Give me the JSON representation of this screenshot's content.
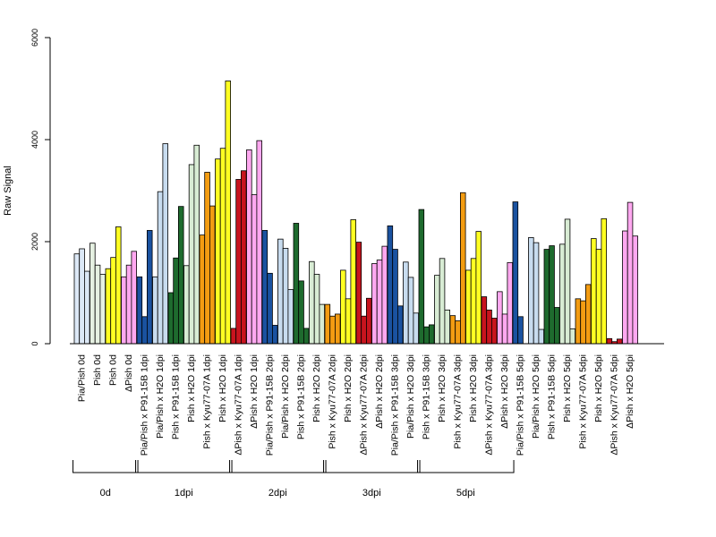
{
  "chart_data": {
    "type": "bar",
    "ylabel": "Raw Signal",
    "ylim": [
      0,
      6000
    ],
    "yticks": [
      0,
      2000,
      4000,
      6000
    ],
    "ytick_labels": [
      "0",
      "2000",
      "4000",
      "6000"
    ],
    "groups": [
      {
        "label": "0d",
        "start": 0,
        "end": 3
      },
      {
        "label": "1dpi",
        "start": 4,
        "end": 9
      },
      {
        "label": "2dpi",
        "start": 10,
        "end": 15
      },
      {
        "label": "3dpi",
        "start": 16,
        "end": 21
      },
      {
        "label": "5dpi",
        "start": 22,
        "end": 27
      }
    ],
    "colors": {
      "pia_pish": "#dce8f6",
      "p91_15b": "#1a52a0",
      "pia_h2o": "#c8dcef",
      "pish_p91": "#1e6b2e",
      "pish_h2o": "#d8ecd4",
      "kyu": "#f39c12",
      "pish_0d": "#e6f1e2",
      "yellow": "#ffff22",
      "red": "#c8141e",
      "pink": "#ffa8f0"
    },
    "categories": [
      {
        "label": "Pia/Pish 0d",
        "values": [
          1760,
          1860,
          1420
        ],
        "colors": [
          "pia_pish",
          "pia_pish",
          "pia_pish"
        ]
      },
      {
        "label": "Pish 0d",
        "values": [
          1970,
          1540,
          1360
        ],
        "colors": [
          "pish_0d",
          "pish_0d",
          "pish_0d"
        ]
      },
      {
        "label": "Pish 0d",
        "values": [
          1470,
          1690,
          2290
        ],
        "colors": [
          "yellow",
          "yellow",
          "yellow"
        ]
      },
      {
        "label": "ΔPish 0d",
        "values": [
          1310,
          1540,
          1810
        ],
        "colors": [
          "pink",
          "pink",
          "pink"
        ]
      },
      {
        "label": "Pia/Pish x P91-15B 1dpi",
        "values": [
          1310,
          530,
          2220
        ],
        "colors": [
          "p91_15b",
          "p91_15b",
          "p91_15b"
        ]
      },
      {
        "label": "Pia/Pish x H2O 1dpi",
        "values": [
          1310,
          2980,
          3920
        ],
        "colors": [
          "pia_h2o",
          "pia_h2o",
          "pia_h2o"
        ]
      },
      {
        "label": "Pish x P91-15B 1dpi",
        "values": [
          1000,
          1680,
          2690
        ],
        "colors": [
          "pish_p91",
          "pish_p91",
          "pish_p91"
        ]
      },
      {
        "label": "Pish x H2O 1dpi",
        "values": [
          1530,
          3510,
          3890
        ],
        "colors": [
          "pish_h2o",
          "pish_h2o",
          "pish_h2o"
        ]
      },
      {
        "label": "Pish x Kyu77-07A 1dpi",
        "values": [
          2130,
          3360,
          2700
        ],
        "colors": [
          "kyu",
          "kyu",
          "kyu"
        ]
      },
      {
        "label": "Pish x H2O 1dpi",
        "values": [
          3620,
          3830,
          5150
        ],
        "colors": [
          "yellow",
          "yellow",
          "yellow"
        ]
      },
      {
        "label": "ΔPish x Kyu77-07A 1dpi",
        "values": [
          300,
          3220,
          3390
        ],
        "colors": [
          "red",
          "red",
          "red"
        ]
      },
      {
        "label": "ΔPish x H2O 1dpi",
        "values": [
          3800,
          2920,
          3980
        ],
        "colors": [
          "pink",
          "pink",
          "pink"
        ]
      },
      {
        "label": "Pia/Pish x P91-15B 2dpi",
        "values": [
          2220,
          1380,
          360
        ],
        "colors": [
          "p91_15b",
          "p91_15b",
          "p91_15b"
        ]
      },
      {
        "label": "Pia/Pish x H2O 2dpi",
        "values": [
          2050,
          1870,
          1060
        ],
        "colors": [
          "pia_h2o",
          "pia_h2o",
          "pia_h2o"
        ]
      },
      {
        "label": "Pish x P91-15B 2dpi",
        "values": [
          2360,
          1230,
          300
        ],
        "colors": [
          "pish_p91",
          "pish_p91",
          "pish_p91"
        ]
      },
      {
        "label": "Pish x H2O 2dpi",
        "values": [
          1610,
          1360,
          770
        ],
        "colors": [
          "pish_h2o",
          "pish_h2o",
          "pish_h2o"
        ]
      },
      {
        "label": "Pish x Kyu77-07A 2dpi",
        "values": [
          770,
          540,
          580
        ],
        "colors": [
          "kyu",
          "kyu",
          "kyu"
        ]
      },
      {
        "label": "Pish x H2O 2dpi",
        "values": [
          1440,
          880,
          2430
        ],
        "colors": [
          "yellow",
          "yellow",
          "yellow"
        ]
      },
      {
        "label": "ΔPish x Kyu77-07A 2dpi",
        "values": [
          1990,
          540,
          890
        ],
        "colors": [
          "red",
          "red",
          "red"
        ]
      },
      {
        "label": "ΔPish x H2O 2dpi",
        "values": [
          1570,
          1640,
          1910
        ],
        "colors": [
          "pink",
          "pink",
          "pink"
        ]
      },
      {
        "label": "Pia/Pish x P91-15B 3dpi",
        "values": [
          2310,
          1850,
          740
        ],
        "colors": [
          "p91_15b",
          "p91_15b",
          "p91_15b"
        ]
      },
      {
        "label": "Pia/Pish x H2O 3dpi",
        "values": [
          1600,
          1300,
          600
        ],
        "colors": [
          "pia_h2o",
          "pia_h2o",
          "pia_h2o"
        ]
      },
      {
        "label": "Pish x P91-15B 3dpi",
        "values": [
          2630,
          330,
          370
        ],
        "colors": [
          "pish_p91",
          "pish_p91",
          "pish_p91"
        ]
      },
      {
        "label": "Pish x H2O 3dpi",
        "values": [
          1340,
          1670,
          660
        ],
        "colors": [
          "pish_h2o",
          "pish_h2o",
          "pish_h2o"
        ]
      },
      {
        "label": "Pish x Kyu77-07A 3dpi",
        "values": [
          550,
          450,
          2960
        ],
        "colors": [
          "kyu",
          "kyu",
          "kyu"
        ]
      },
      {
        "label": "Pish x H2O 3dpi",
        "values": [
          1440,
          1670,
          2200
        ],
        "colors": [
          "yellow",
          "yellow",
          "yellow"
        ]
      },
      {
        "label": "ΔPish x Kyu77-07A 3dpi",
        "values": [
          920,
          660,
          500
        ],
        "colors": [
          "red",
          "red",
          "red"
        ]
      },
      {
        "label": "ΔPish x H2O 3dpi",
        "values": [
          1020,
          580,
          1590
        ],
        "colors": [
          "pink",
          "pink",
          "pink"
        ]
      },
      {
        "label": "Pia/Pish x P91-15B 5dpi",
        "values": [
          2780,
          530,
          0
        ],
        "colors": [
          "p91_15b",
          "p91_15b",
          "p91_15b"
        ]
      },
      {
        "label": "Pia/Pish x H2O 5dpi",
        "values": [
          2080,
          1980,
          280
        ],
        "colors": [
          "pia_h2o",
          "pia_h2o",
          "pia_h2o"
        ]
      },
      {
        "label": "Pish x P91-15B 5dpi",
        "values": [
          1850,
          1920,
          710
        ],
        "colors": [
          "pish_p91",
          "pish_p91",
          "pish_p91"
        ]
      },
      {
        "label": "Pish x H2O 5dpi",
        "values": [
          1950,
          2440,
          290
        ],
        "colors": [
          "pish_h2o",
          "pish_h2o",
          "pish_h2o"
        ]
      },
      {
        "label": "Pish x Kyu77-07A 5dpi",
        "values": [
          880,
          840,
          1160
        ],
        "colors": [
          "kyu",
          "kyu",
          "kyu"
        ]
      },
      {
        "label": "Pish x H2O 5dpi",
        "values": [
          2060,
          1850,
          2450
        ],
        "colors": [
          "yellow",
          "yellow",
          "yellow"
        ]
      },
      {
        "label": "ΔPish x Kyu77-07A 5dpi",
        "values": [
          100,
          40,
          90
        ],
        "colors": [
          "red",
          "red",
          "red"
        ]
      },
      {
        "label": "ΔPish x H2O 5dpi",
        "values": [
          2210,
          2770,
          2110
        ],
        "colors": [
          "pink",
          "pink",
          "pink"
        ]
      }
    ]
  }
}
